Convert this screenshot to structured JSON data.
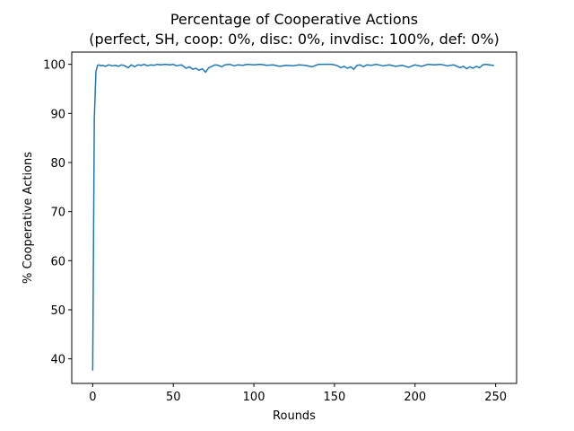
{
  "chart_data": {
    "type": "line",
    "title": "Percentage of Cooperative Actions",
    "subtitle": "(perfect, SH, coop: 0%, disc: 0%, invdisc: 100%, def: 0%)",
    "xlabel": "Rounds",
    "ylabel": "% Cooperative Actions",
    "xlim": [
      -13,
      263
    ],
    "ylim": [
      35,
      102.5
    ],
    "xticks": [
      0,
      50,
      100,
      150,
      200,
      250
    ],
    "yticks": [
      40,
      50,
      60,
      70,
      80,
      90,
      100
    ],
    "grid": false,
    "legend": "none",
    "series": [
      {
        "color": "#1f77b4",
        "points": [
          [
            0,
            37.6
          ],
          [
            1,
            89
          ],
          [
            2,
            98.5
          ],
          [
            3,
            99.8
          ],
          [
            4,
            99.9
          ],
          [
            5,
            99.7
          ],
          [
            6,
            99.8
          ],
          [
            8,
            99.6
          ],
          [
            10,
            99.9
          ],
          [
            12,
            99.7
          ],
          [
            14,
            99.8
          ],
          [
            16,
            99.6
          ],
          [
            18,
            99.9
          ],
          [
            20,
            99.7
          ],
          [
            22,
            99.3
          ],
          [
            24,
            99.9
          ],
          [
            26,
            99.5
          ],
          [
            28,
            99.9
          ],
          [
            30,
            99.8
          ],
          [
            32,
            100
          ],
          [
            34,
            99.7
          ],
          [
            36,
            99.9
          ],
          [
            38,
            99.8
          ],
          [
            40,
            100
          ],
          [
            42,
            99.9
          ],
          [
            45,
            100
          ],
          [
            48,
            99.9
          ],
          [
            50,
            100
          ],
          [
            52,
            99.7
          ],
          [
            55,
            99.9
          ],
          [
            58,
            99.2
          ],
          [
            60,
            99.5
          ],
          [
            62,
            99
          ],
          [
            64,
            99.2
          ],
          [
            66,
            98.8
          ],
          [
            68,
            99.1
          ],
          [
            70,
            98.4
          ],
          [
            72,
            99.3
          ],
          [
            74,
            99.6
          ],
          [
            76,
            99.9
          ],
          [
            78,
            99.8
          ],
          [
            80,
            99.5
          ],
          [
            82,
            99.9
          ],
          [
            85,
            100
          ],
          [
            88,
            99.7
          ],
          [
            90,
            99.9
          ],
          [
            93,
            99.8
          ],
          [
            96,
            100
          ],
          [
            100,
            99.9
          ],
          [
            104,
            100
          ],
          [
            108,
            99.8
          ],
          [
            112,
            99.9
          ],
          [
            116,
            99.6
          ],
          [
            120,
            99.8
          ],
          [
            124,
            99.7
          ],
          [
            128,
            99.9
          ],
          [
            132,
            99.8
          ],
          [
            136,
            99.5
          ],
          [
            140,
            100
          ],
          [
            144,
            100
          ],
          [
            148,
            100
          ],
          [
            150,
            99.9
          ],
          [
            152,
            99.7
          ],
          [
            154,
            99.3
          ],
          [
            156,
            99.6
          ],
          [
            158,
            99.2
          ],
          [
            160,
            99.5
          ],
          [
            162,
            99
          ],
          [
            164,
            99.8
          ],
          [
            166,
            99.9
          ],
          [
            168,
            99.5
          ],
          [
            170,
            99.9
          ],
          [
            173,
            99.8
          ],
          [
            176,
            100
          ],
          [
            180,
            99.7
          ],
          [
            184,
            99.9
          ],
          [
            188,
            99.6
          ],
          [
            192,
            99.8
          ],
          [
            196,
            99.4
          ],
          [
            200,
            99.9
          ],
          [
            204,
            99.6
          ],
          [
            208,
            100
          ],
          [
            212,
            99.9
          ],
          [
            216,
            100
          ],
          [
            220,
            99.7
          ],
          [
            224,
            99.9
          ],
          [
            228,
            99.3
          ],
          [
            230,
            99.6
          ],
          [
            232,
            99.1
          ],
          [
            234,
            99.5
          ],
          [
            236,
            99.2
          ],
          [
            238,
            99.6
          ],
          [
            240,
            99.3
          ],
          [
            242,
            99.9
          ],
          [
            244,
            100
          ],
          [
            246,
            99.9
          ],
          [
            248,
            99.8
          ],
          [
            249,
            99.8
          ]
        ]
      }
    ]
  }
}
